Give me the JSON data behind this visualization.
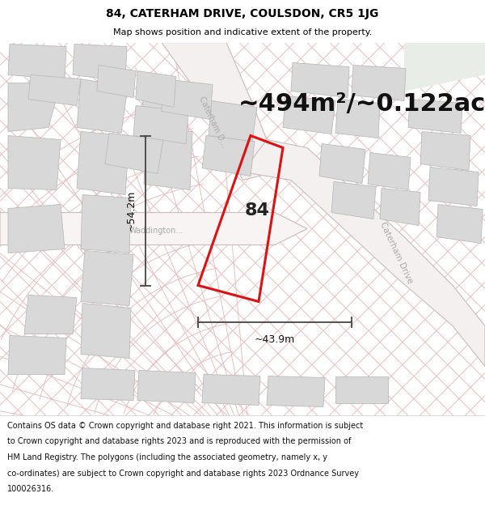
{
  "title_line1": "84, CATERHAM DRIVE, COULSDON, CR5 1JG",
  "title_line2": "Map shows position and indicative extent of the property.",
  "area_label": "~494m²/~0.122ac.",
  "width_label": "~43.9m",
  "height_label": "~54.2m",
  "number_label": "84",
  "footer_lines": [
    "Contains OS data © Crown copyright and database right 2021. This information is subject",
    "to Crown copyright and database rights 2023 and is reproduced with the permission of",
    "HM Land Registry. The polygons (including the associated geometry, namely x, y",
    "co-ordinates) are subject to Crown copyright and database rights 2023 Ordnance Survey",
    "100026316."
  ],
  "map_bg": "#ffffff",
  "hatch_color": "#e8b8b8",
  "road_bg": "#f0e8e8",
  "plot_line_color": "#dd1111",
  "dim_line_color": "#444444",
  "building_face": "#d8d8d8",
  "building_edge": "#bbbbbb",
  "road_label_color": "#aaaaaa",
  "title_fontsize": 10,
  "subtitle_fontsize": 8,
  "area_fontsize": 22,
  "number_fontsize": 16,
  "dim_fontsize": 9,
  "footer_fontsize": 7
}
